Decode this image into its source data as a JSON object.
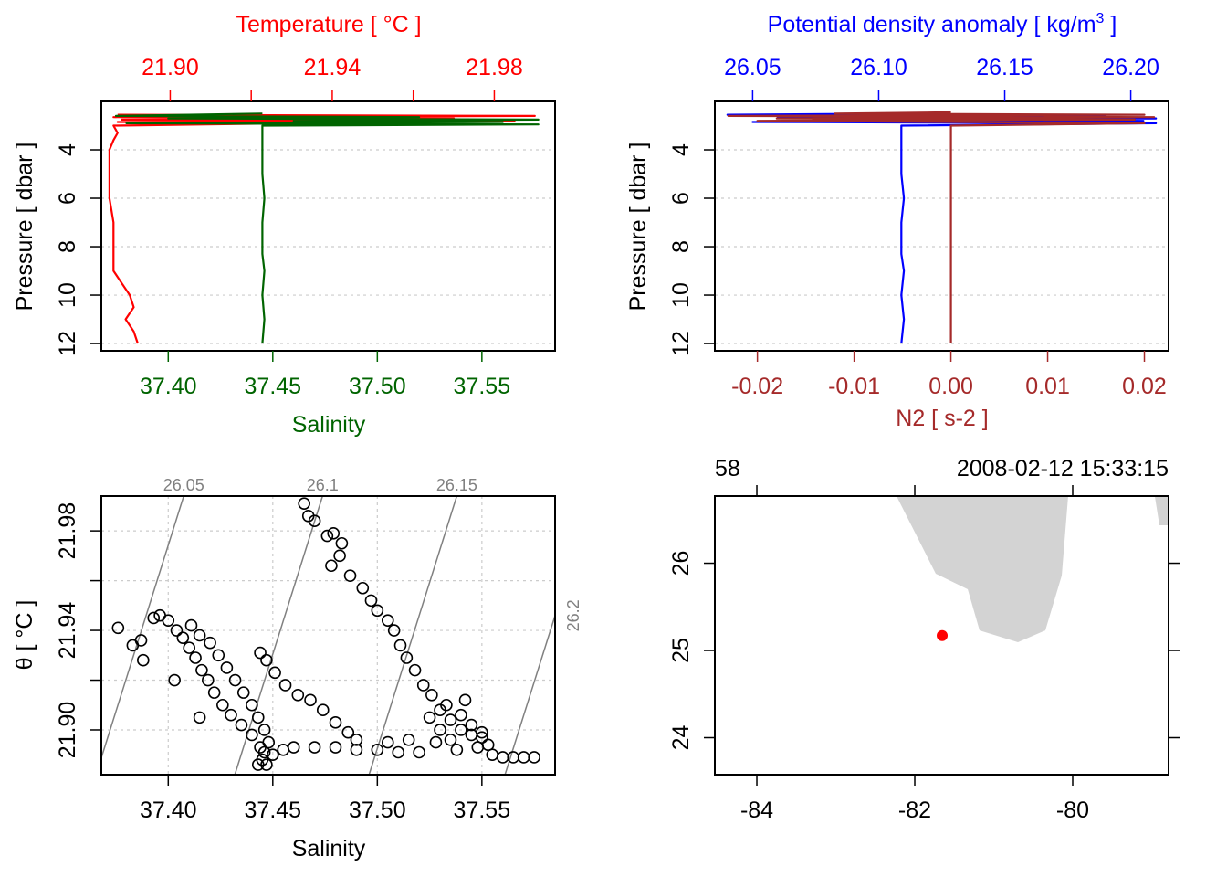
{
  "chart_data": [
    {
      "type": "line",
      "panel": "profile-temperature-salinity",
      "top_axis": {
        "label": "Temperature [ °C ]",
        "ticks": [
          21.9,
          21.92,
          21.94,
          21.96,
          21.98
        ],
        "tick_labels": [
          "21.90",
          "",
          "21.94",
          "",
          "21.98"
        ],
        "range": [
          21.883,
          21.995
        ],
        "color": "#FF0000"
      },
      "bottom_axis": {
        "label": "Salinity",
        "ticks": [
          37.4,
          37.45,
          37.5,
          37.55
        ],
        "tick_labels": [
          "37.40",
          "37.45",
          "37.50",
          "37.55"
        ],
        "range": [
          37.368,
          37.585
        ],
        "color": "#006400"
      },
      "left_axis": {
        "label": "Pressure [ dbar ]",
        "ticks": [
          4,
          6,
          8,
          10,
          12
        ],
        "tick_labels": [
          "4",
          "6",
          "8",
          "10",
          "12"
        ],
        "range": [
          12.3,
          2.0
        ],
        "reversed": true
      },
      "grid": "horizontal-dotted",
      "series": [
        {
          "variable": "temperature",
          "color": "#FF0000",
          "pressure": [
            2.55,
            2.6,
            2.65,
            2.7,
            2.75,
            2.8,
            2.85,
            2.9,
            3.0,
            3.3,
            3.6,
            4.0,
            4.5,
            5,
            6,
            7,
            8,
            9,
            9.5,
            10,
            10.5,
            11,
            11.5,
            12
          ],
          "values": [
            21.887,
            21.99,
            21.886,
            21.97,
            21.888,
            21.985,
            21.887,
            21.93,
            21.886,
            21.887,
            21.886,
            21.885,
            21.885,
            21.885,
            21.885,
            21.886,
            21.886,
            21.886,
            21.888,
            21.89,
            21.891,
            21.889,
            21.891,
            21.892
          ]
        },
        {
          "variable": "salinity",
          "color": "#006400",
          "pressure": [
            2.5,
            2.6,
            2.65,
            2.7,
            2.75,
            2.8,
            2.85,
            2.9,
            2.95,
            3.0,
            3.5,
            4,
            5,
            6,
            7,
            8,
            8.2,
            8.3,
            9,
            10,
            11,
            12
          ],
          "values": [
            37.445,
            37.375,
            37.52,
            37.4,
            37.577,
            37.46,
            37.56,
            37.38,
            37.577,
            37.445,
            37.445,
            37.445,
            37.445,
            37.446,
            37.445,
            37.445,
            37.445,
            37.445,
            37.446,
            37.445,
            37.446,
            37.445
          ]
        }
      ]
    },
    {
      "type": "line",
      "panel": "profile-density-n2",
      "top_axis": {
        "label": "Potential density anomaly [ kg/m3 ]",
        "ticks": [
          26.05,
          26.1,
          26.15,
          26.2
        ],
        "tick_labels": [
          "26.05",
          "26.10",
          "26.15",
          "26.20"
        ],
        "range": [
          26.035,
          26.215
        ],
        "color": "#0000FF"
      },
      "bottom_axis": {
        "label": "N2 [ s-2 ]",
        "ticks": [
          -0.02,
          -0.01,
          0.0,
          0.01,
          0.02
        ],
        "tick_labels": [
          "-0.02",
          "-0.01",
          "0.00",
          "0.01",
          "0.02"
        ],
        "range": [
          -0.0244,
          0.0225
        ],
        "color": "#A52A2A"
      },
      "left_axis": {
        "label": "Pressure [ dbar ]",
        "ticks": [
          4,
          6,
          8,
          10,
          12
        ],
        "tick_labels": [
          "4",
          "6",
          "8",
          "10",
          "12"
        ],
        "range": [
          12.3,
          2.0
        ],
        "reversed": true
      },
      "grid": "horizontal-dotted",
      "series": [
        {
          "variable": "density",
          "color": "#0000FF",
          "pressure": [
            2.5,
            2.55,
            2.6,
            2.65,
            2.7,
            2.75,
            2.8,
            2.85,
            2.9,
            3.0,
            3.5,
            4,
            5,
            6,
            7,
            8,
            8.2,
            8.3,
            9,
            10,
            11,
            12
          ],
          "values": [
            26.11,
            26.04,
            26.19,
            26.06,
            26.21,
            26.09,
            26.205,
            26.05,
            26.21,
            26.109,
            26.109,
            26.109,
            26.109,
            26.11,
            26.109,
            26.109,
            26.109,
            26.109,
            26.11,
            26.109,
            26.11,
            26.109
          ]
        },
        {
          "variable": "N2",
          "color": "#A52A2A",
          "pressure": [
            2.45,
            2.5,
            2.55,
            2.6,
            2.65,
            2.7,
            2.75,
            2.8,
            2.85,
            2.9,
            3.0,
            4,
            6,
            8,
            10,
            12
          ],
          "values": [
            0.0,
            -0.012,
            0.02,
            -0.023,
            0.021,
            -0.018,
            0.019,
            -0.02,
            0.0,
            0.02,
            0.0,
            0.0,
            0.0,
            0.0,
            0.0,
            0.0
          ]
        }
      ]
    },
    {
      "type": "scatter",
      "panel": "ts-diagram",
      "xlabel": "Salinity",
      "ylabel": "θ [ °C ]",
      "x_axis": {
        "ticks": [
          37.4,
          37.45,
          37.5,
          37.55
        ],
        "tick_labels": [
          "37.40",
          "37.45",
          "37.50",
          "37.55"
        ],
        "range": [
          37.368,
          37.585
        ]
      },
      "y_axis": {
        "ticks": [
          21.9,
          21.92,
          21.94,
          21.96,
          21.98
        ],
        "tick_labels": [
          "21.90",
          "",
          "21.94",
          "",
          "21.98"
        ],
        "range": [
          21.882,
          21.994
        ]
      },
      "grid": "dotted",
      "isopycnals": [
        {
          "sigma": 26.05,
          "label": "26.05",
          "salinity_at_top": 37.4074
        },
        {
          "sigma": 26.1,
          "label": "26.1",
          "salinity_at_top": 37.4738
        },
        {
          "sigma": 26.15,
          "label": "26.15",
          "salinity_at_top": 37.538
        },
        {
          "sigma": 26.2,
          "label": "26.2",
          "salinity_at_top": 37.603
        }
      ],
      "isopycnal_slope_dtheta_dS": 2.67,
      "points": [
        [
          37.465,
          21.991
        ],
        [
          37.467,
          21.986
        ],
        [
          37.47,
          21.984
        ],
        [
          37.476,
          21.978
        ],
        [
          37.479,
          21.979
        ],
        [
          37.483,
          21.975
        ],
        [
          37.482,
          21.97
        ],
        [
          37.478,
          21.966
        ],
        [
          37.487,
          21.962
        ],
        [
          37.493,
          21.957
        ],
        [
          37.497,
          21.952
        ],
        [
          37.5,
          21.948
        ],
        [
          37.505,
          21.944
        ],
        [
          37.508,
          21.94
        ],
        [
          37.511,
          21.934
        ],
        [
          37.514,
          21.929
        ],
        [
          37.518,
          21.924
        ],
        [
          37.522,
          21.918
        ],
        [
          37.526,
          21.914
        ],
        [
          37.53,
          21.908
        ],
        [
          37.535,
          21.904
        ],
        [
          37.54,
          21.9
        ],
        [
          37.545,
          21.898
        ],
        [
          37.55,
          21.897
        ],
        [
          37.553,
          21.894
        ],
        [
          37.555,
          21.89
        ],
        [
          37.56,
          21.889
        ],
        [
          37.565,
          21.889
        ],
        [
          37.57,
          21.889
        ],
        [
          37.575,
          21.889
        ],
        [
          37.46,
          21.893
        ],
        [
          37.47,
          21.893
        ],
        [
          37.48,
          21.893
        ],
        [
          37.49,
          21.892
        ],
        [
          37.5,
          21.892
        ],
        [
          37.51,
          21.891
        ],
        [
          37.52,
          21.891
        ],
        [
          37.505,
          21.895
        ],
        [
          37.515,
          21.896
        ],
        [
          37.525,
          21.905
        ],
        [
          37.53,
          21.9
        ],
        [
          37.535,
          21.896
        ],
        [
          37.54,
          21.906
        ],
        [
          37.545,
          21.902
        ],
        [
          37.528,
          21.895
        ],
        [
          37.538,
          21.892
        ],
        [
          37.548,
          21.893
        ],
        [
          37.533,
          21.91
        ],
        [
          37.542,
          21.912
        ],
        [
          37.55,
          21.899
        ],
        [
          37.376,
          21.941
        ],
        [
          37.383,
          21.934
        ],
        [
          37.387,
          21.936
        ],
        [
          37.388,
          21.928
        ],
        [
          37.393,
          21.945
        ],
        [
          37.396,
          21.946
        ],
        [
          37.4,
          21.944
        ],
        [
          37.404,
          21.94
        ],
        [
          37.407,
          21.937
        ],
        [
          37.41,
          21.933
        ],
        [
          37.413,
          21.929
        ],
        [
          37.416,
          21.924
        ],
        [
          37.419,
          21.92
        ],
        [
          37.422,
          21.915
        ],
        [
          37.426,
          21.91
        ],
        [
          37.43,
          21.906
        ],
        [
          37.435,
          21.902
        ],
        [
          37.44,
          21.898
        ],
        [
          37.403,
          21.92
        ],
        [
          37.415,
          21.905
        ],
        [
          37.411,
          21.942
        ],
        [
          37.415,
          21.938
        ],
        [
          37.42,
          21.935
        ],
        [
          37.424,
          21.93
        ],
        [
          37.428,
          21.925
        ],
        [
          37.432,
          21.92
        ],
        [
          37.436,
          21.915
        ],
        [
          37.44,
          21.91
        ],
        [
          37.443,
          21.905
        ],
        [
          37.446,
          21.9
        ],
        [
          37.448,
          21.895
        ],
        [
          37.444,
          21.931
        ],
        [
          37.447,
          21.928
        ],
        [
          37.451,
          21.923
        ],
        [
          37.456,
          21.918
        ],
        [
          37.462,
          21.914
        ],
        [
          37.468,
          21.912
        ],
        [
          37.474,
          21.908
        ],
        [
          37.48,
          21.903
        ],
        [
          37.486,
          21.899
        ],
        [
          37.49,
          21.896
        ],
        [
          37.443,
          21.886
        ],
        [
          37.445,
          21.888
        ],
        [
          37.446,
          21.891
        ],
        [
          37.444,
          21.893
        ],
        [
          37.447,
          21.886
        ],
        [
          37.45,
          21.89
        ],
        [
          37.455,
          21.892
        ]
      ]
    },
    {
      "type": "map",
      "panel": "station-map",
      "top_left_label": "58",
      "top_right_label": "2008-02-12 15:33:15",
      "x_axis": {
        "ticks": [
          -84,
          -82,
          -80
        ],
        "tick_labels": [
          "-84",
          "-82",
          "-80"
        ],
        "range": [
          -84.532,
          -78.786
        ]
      },
      "y_axis": {
        "ticks": [
          24,
          25,
          26
        ],
        "tick_labels": [
          "24",
          "25",
          "26"
        ],
        "range": [
          23.576,
          26.77
        ]
      },
      "land_color": "#D3D3D3",
      "coastline": [
        [
          [
            -82.231,
            26.77
          ],
          [
            -81.734,
            25.88
          ],
          [
            -81.329,
            25.702
          ],
          [
            -81.179,
            25.23
          ],
          [
            -80.694,
            25.094
          ],
          [
            -80.347,
            25.23
          ],
          [
            -80.139,
            25.859
          ],
          [
            -80.058,
            26.77
          ]
        ],
        [
          [
            -78.96,
            26.77
          ],
          [
            -78.902,
            26.435
          ],
          [
            -78.786,
            26.435
          ],
          [
            -78.786,
            26.77
          ]
        ]
      ],
      "station": {
        "lon": -81.653,
        "lat": 25.17,
        "color": "#FF0000"
      }
    }
  ]
}
